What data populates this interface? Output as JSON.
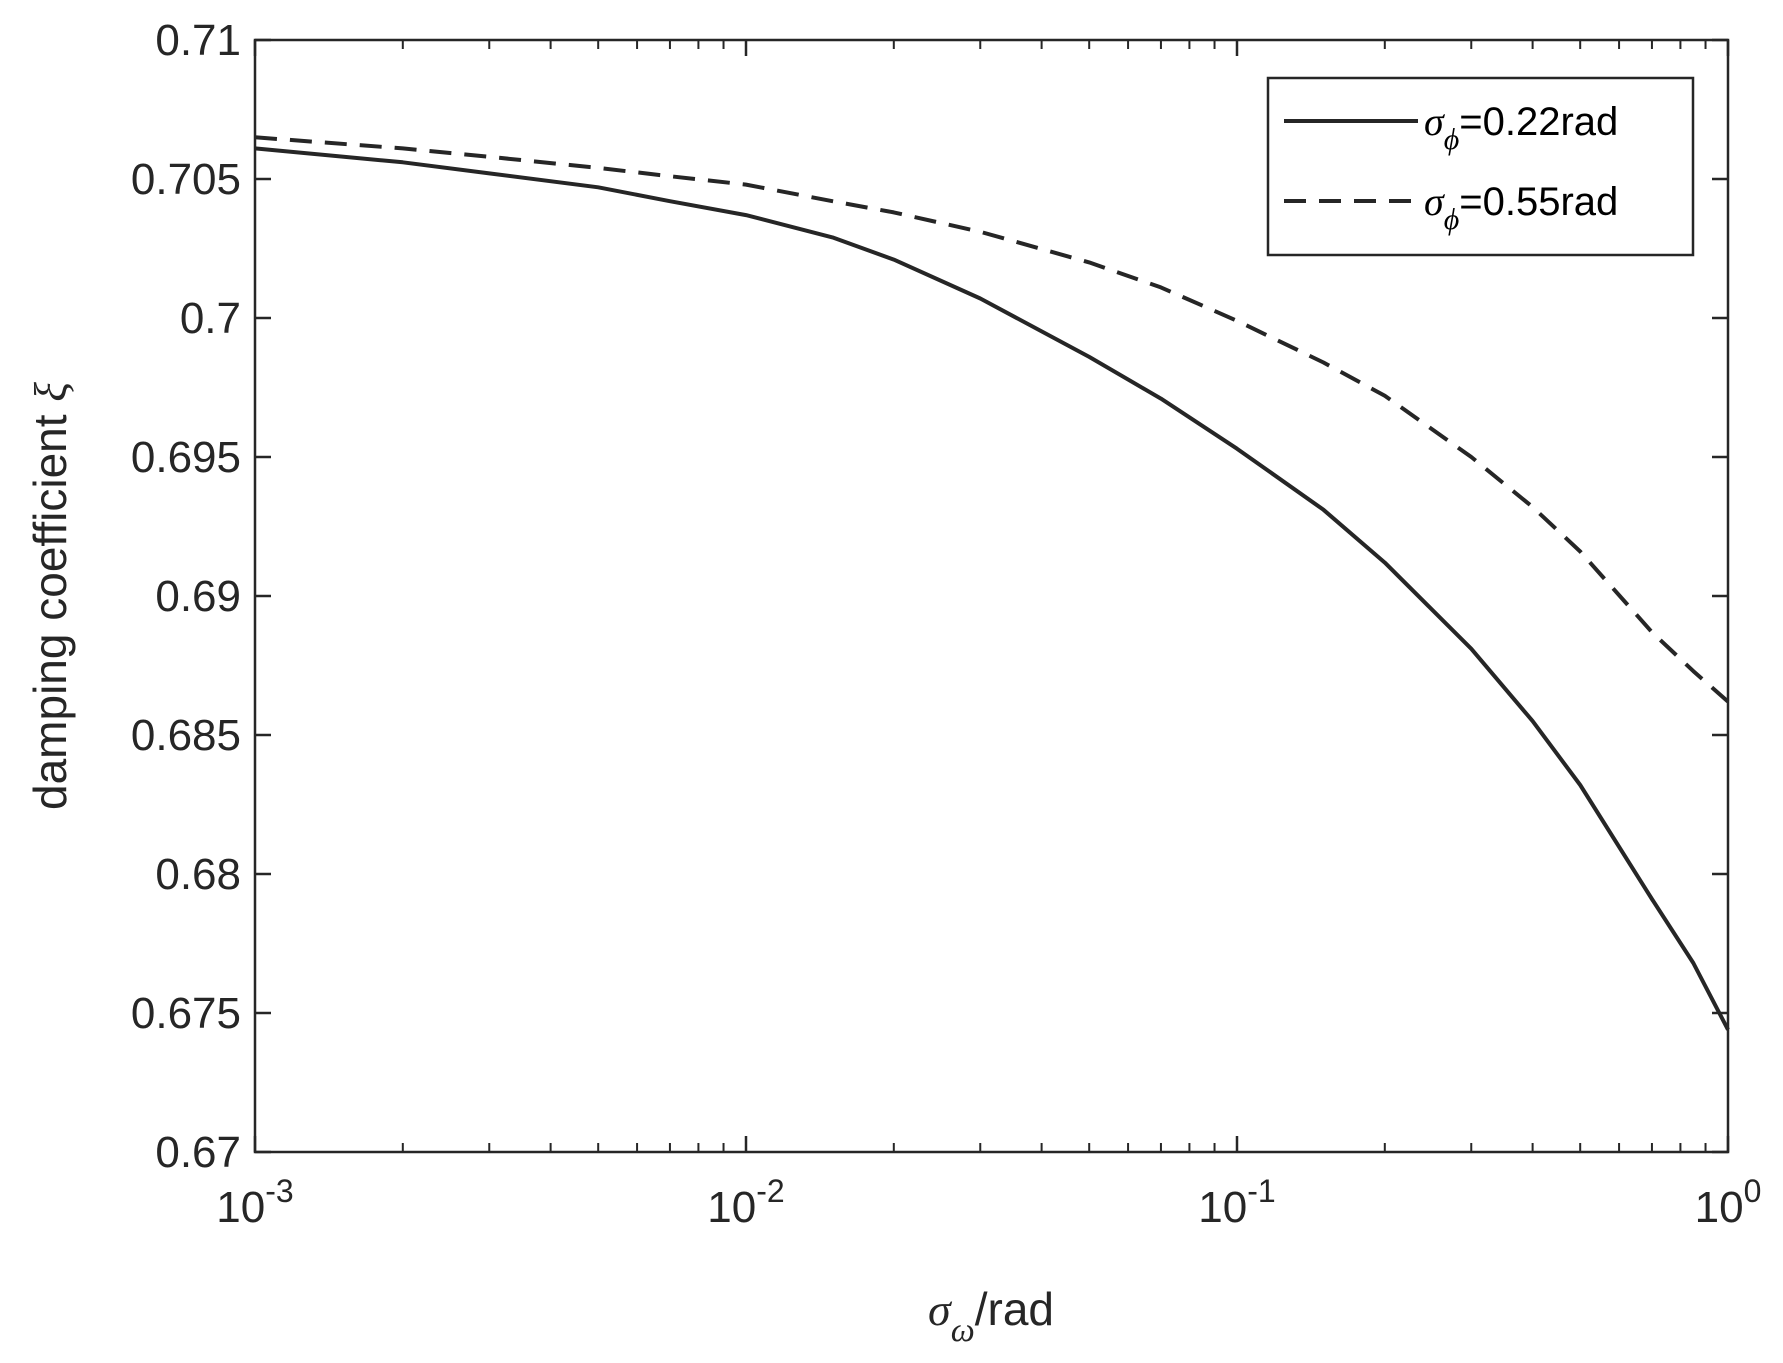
{
  "chart_data": {
    "type": "line",
    "xscale": "log",
    "xlim": [
      0.001,
      1
    ],
    "ylim": [
      0.67,
      0.71
    ],
    "grid": false,
    "legend_position": "top-right",
    "xlabel": {
      "symbol": "σ",
      "sub": "ω",
      "rest": "/rad"
    },
    "ylabel": {
      "text": "damping coefficient ",
      "symbol": "ξ"
    },
    "x_ticks": [
      {
        "value": 0.001,
        "base": "10",
        "exp": "-3"
      },
      {
        "value": 0.01,
        "base": "10",
        "exp": "-2"
      },
      {
        "value": 0.1,
        "base": "10",
        "exp": "-1"
      },
      {
        "value": 1,
        "base": "10",
        "exp": "0"
      }
    ],
    "y_ticks": [
      {
        "value": 0.67,
        "label": "0.67"
      },
      {
        "value": 0.675,
        "label": "0.675"
      },
      {
        "value": 0.68,
        "label": "0.68"
      },
      {
        "value": 0.685,
        "label": "0.685"
      },
      {
        "value": 0.69,
        "label": "0.69"
      },
      {
        "value": 0.695,
        "label": "0.695"
      },
      {
        "value": 0.7,
        "label": "0.7"
      },
      {
        "value": 0.705,
        "label": "0.705"
      },
      {
        "value": 0.71,
        "label": "0.71"
      }
    ],
    "series": [
      {
        "legend_symbol": "σ",
        "legend_sub": "ϕ",
        "legend_rest": "=0.22rad",
        "line_style": "solid",
        "color": "#262626",
        "x": [
          0.001,
          0.002,
          0.003,
          0.005,
          0.007,
          0.01,
          0.015,
          0.02,
          0.03,
          0.05,
          0.07,
          0.1,
          0.15,
          0.2,
          0.3,
          0.4,
          0.5,
          0.7,
          0.85,
          1.0
        ],
        "y": [
          0.7061,
          0.7056,
          0.7052,
          0.7047,
          0.7042,
          0.7037,
          0.7029,
          0.7021,
          0.7007,
          0.6986,
          0.6971,
          0.6953,
          0.6931,
          0.6912,
          0.6881,
          0.6855,
          0.6832,
          0.6791,
          0.6768,
          0.6744
        ]
      },
      {
        "legend_symbol": "σ",
        "legend_sub": "ϕ",
        "legend_rest": "=0.55rad",
        "line_style": "dashed",
        "color": "#262626",
        "x": [
          0.001,
          0.002,
          0.003,
          0.005,
          0.007,
          0.01,
          0.015,
          0.02,
          0.03,
          0.05,
          0.07,
          0.1,
          0.15,
          0.2,
          0.3,
          0.4,
          0.5,
          0.7,
          0.85,
          1.0
        ],
        "y": [
          0.7065,
          0.7061,
          0.7058,
          0.7054,
          0.7051,
          0.7048,
          0.7042,
          0.7038,
          0.7031,
          0.702,
          0.7011,
          0.6999,
          0.6984,
          0.6972,
          0.695,
          0.6932,
          0.6916,
          0.6887,
          0.6873,
          0.6862
        ]
      }
    ]
  }
}
